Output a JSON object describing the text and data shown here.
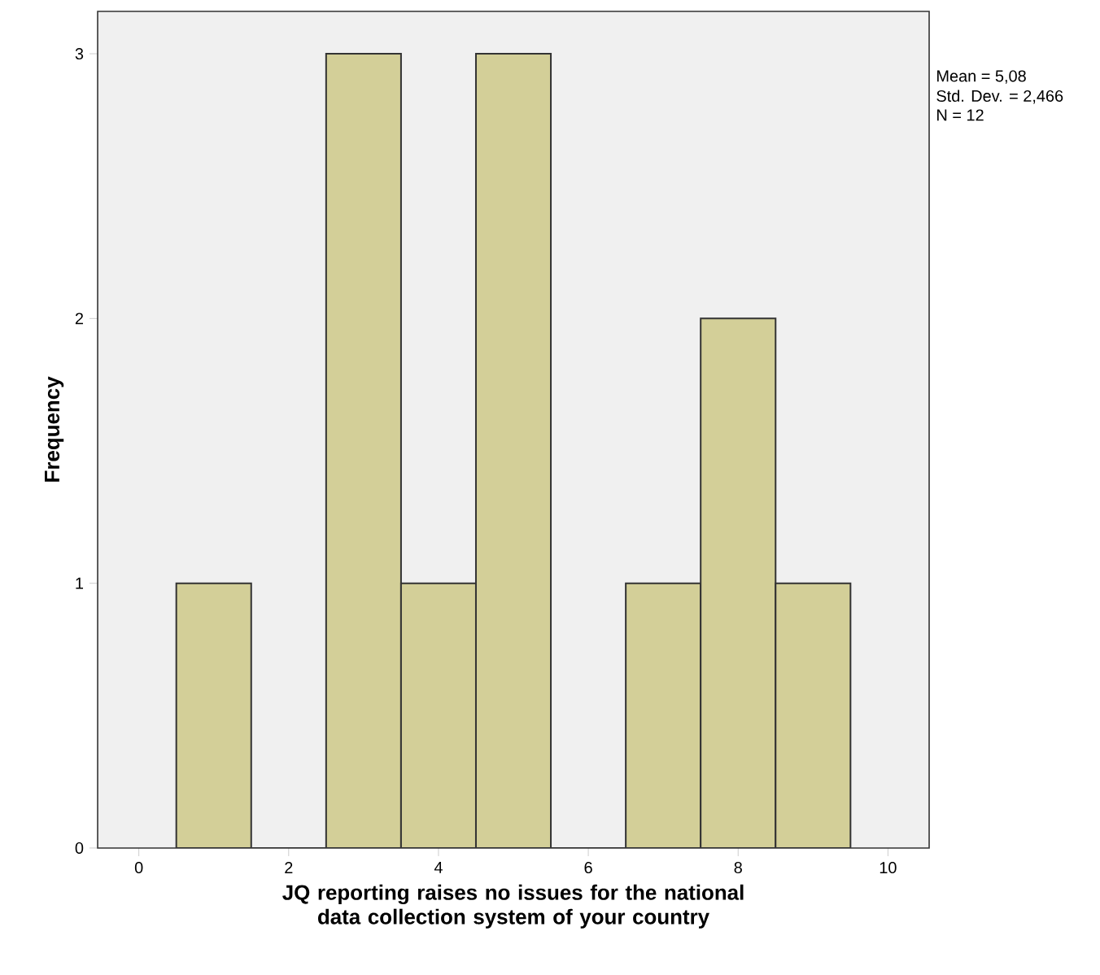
{
  "chart_data": {
    "type": "histogram",
    "xlabel": "JQ reporting raises no issues for the national data collection system of your country",
    "ylabel": "Frequency",
    "bins": [
      0.5,
      1.5,
      2.5,
      3.5,
      4.5,
      5.5,
      6.5,
      7.5,
      8.5,
      9.5
    ],
    "values": [
      1,
      0,
      3,
      1,
      3,
      0,
      1,
      2,
      1
    ],
    "color": "#d3cf98",
    "xlim": [
      -0.55,
      10.55
    ],
    "xticks": [
      0,
      2,
      4,
      6,
      8,
      10
    ],
    "ylim": [
      0,
      3.16
    ],
    "yticks": [
      0,
      1,
      2,
      3
    ],
    "grid": false,
    "annotations": [
      "Mean = 5,08",
      "Std. Dev. = 2,466",
      "N = 12"
    ]
  }
}
